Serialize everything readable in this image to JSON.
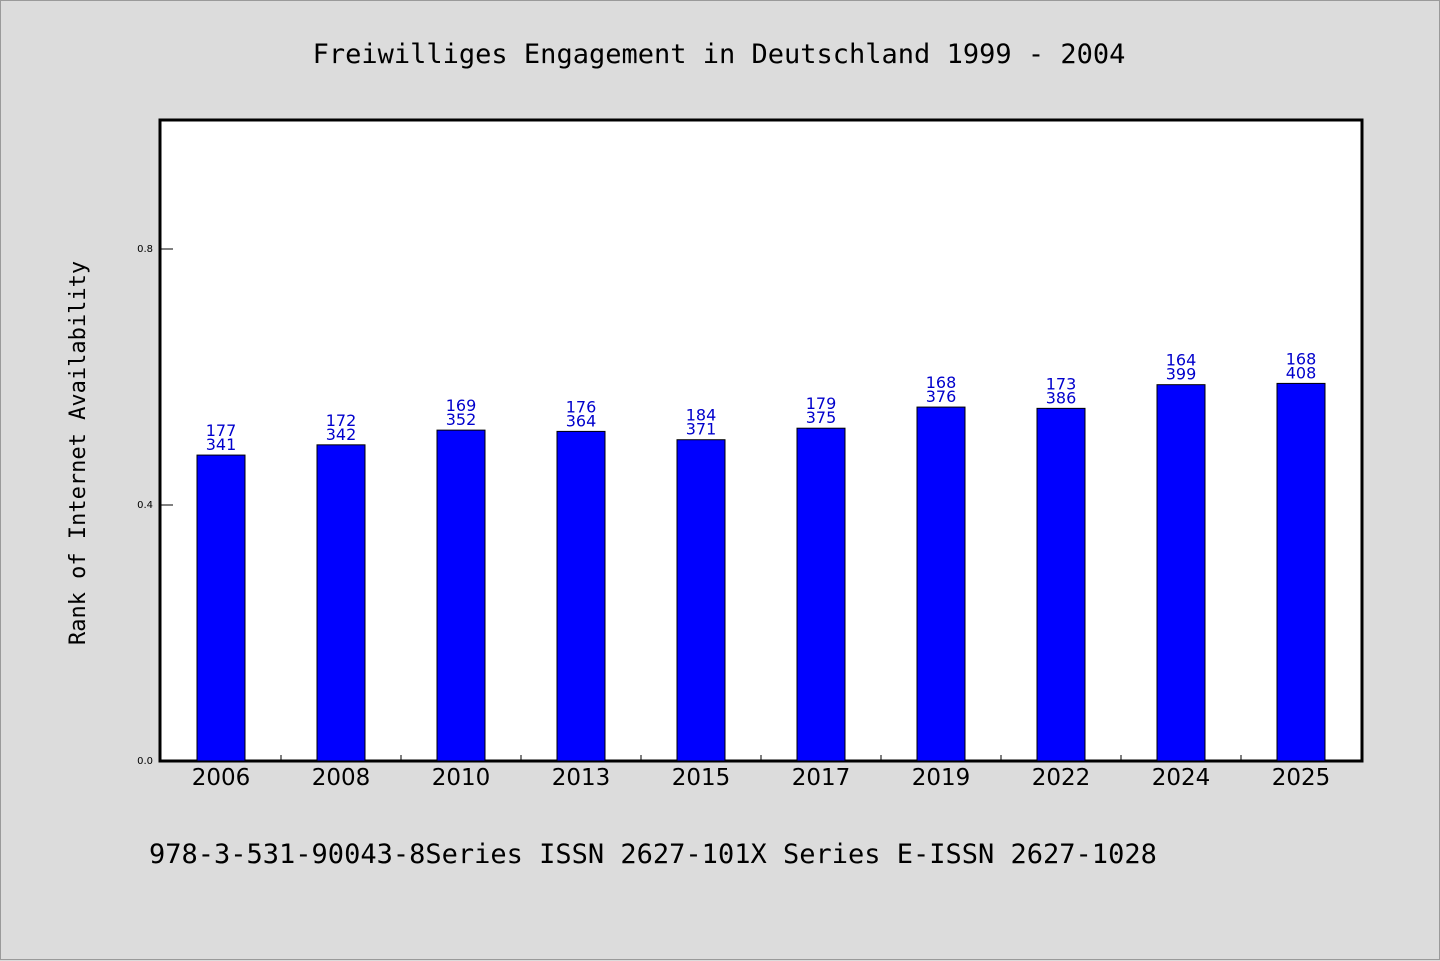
{
  "chart_data": {
    "type": "bar",
    "title": "Freiwilliges Engagement in Deutschland 1999 - 2004",
    "ylabel": "Rank of Internet Availability",
    "xlabel": "",
    "footer": "978-3-531-90043-8Series ISSN 2627-101X Series E-ISSN 2627-1028",
    "categories": [
      "2006",
      "2008",
      "2010",
      "2013",
      "2015",
      "2017",
      "2019",
      "2022",
      "2024",
      "2025"
    ],
    "values": [
      0.478,
      0.494,
      0.517,
      0.515,
      0.502,
      0.52,
      0.553,
      0.551,
      0.588,
      0.59
    ],
    "labels_top": [
      "177",
      "172",
      "169",
      "176",
      "184",
      "179",
      "168",
      "173",
      "164",
      "168"
    ],
    "labels_bottom": [
      "341",
      "342",
      "352",
      "364",
      "371",
      "375",
      "376",
      "386",
      "399",
      "408"
    ],
    "ylim": [
      0,
      1.0
    ],
    "yticks": [
      0.0,
      0.4,
      0.8
    ],
    "ytick_labels": [
      "0.0",
      "0.4",
      "0.8"
    ],
    "grid": false,
    "bar_color": "#0000ff",
    "label_color": "#0000cc",
    "background_color": "#dcdcdc",
    "plot_background": "#ffffff"
  }
}
